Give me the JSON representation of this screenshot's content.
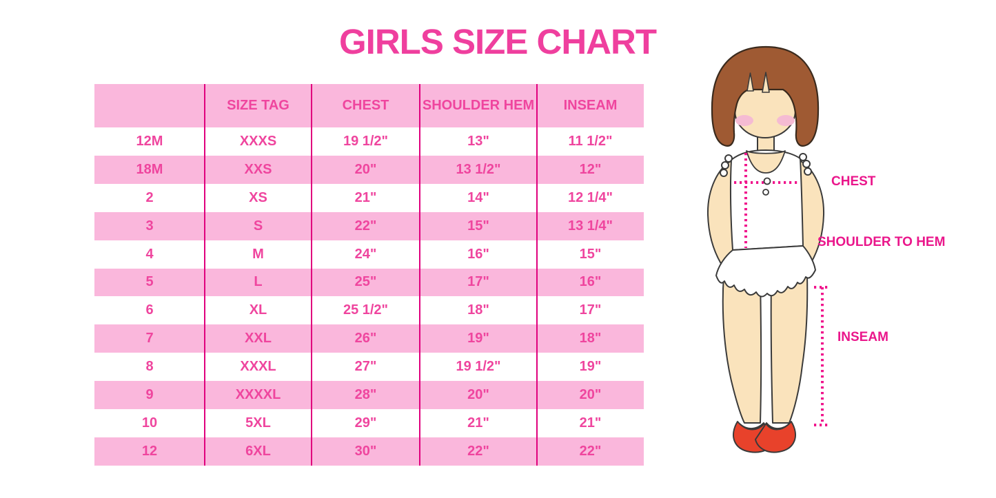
{
  "title": "GIRLS SIZE CHART",
  "chart_data": {
    "type": "table",
    "title": "GIRLS SIZE CHART",
    "columns": [
      "",
      "SIZE TAG",
      "CHEST",
      "SHOULDER HEM",
      "INSEAM"
    ],
    "rows": [
      [
        "12M",
        "XXXS",
        "19 1/2\"",
        "13\"",
        "11 1/2\""
      ],
      [
        "18M",
        "XXS",
        "20\"",
        "13 1/2\"",
        "12\""
      ],
      [
        "2",
        "XS",
        "21\"",
        "14\"",
        "12 1/4\""
      ],
      [
        "3",
        "S",
        "22\"",
        "15\"",
        "13 1/4\""
      ],
      [
        "4",
        "M",
        "24\"",
        "16\"",
        "15\""
      ],
      [
        "5",
        "L",
        "25\"",
        "17\"",
        "16\""
      ],
      [
        "6",
        "XL",
        "25 1/2\"",
        "18\"",
        "17\""
      ],
      [
        "7",
        "XXL",
        "26\"",
        "19\"",
        "18\""
      ],
      [
        "8",
        "XXXL",
        "27\"",
        "19 1/2\"",
        "19\""
      ],
      [
        "9",
        "XXXXL",
        "28\"",
        "20\"",
        "20\""
      ],
      [
        "10",
        "5XL",
        "29\"",
        "21\"",
        "21\""
      ],
      [
        "12",
        "6XL",
        "30\"",
        "22\"",
        "22\""
      ]
    ],
    "row_striping": "first data row white, alternating light pink",
    "layout_hints": {
      "header_background": "light pink",
      "column_dividers": "magenta vertical lines"
    }
  },
  "diagram": {
    "chest_label": "CHEST",
    "shoulder_label": "SHOULDER TO HEM",
    "inseam_label": "INSEAM"
  },
  "colors": {
    "title_pink": "#EF3F9E",
    "table_text": "#EF459E",
    "row_pink": "#FAB7DC",
    "divider": "#E0007D",
    "label": "#EA168B",
    "dotted_line": "#F0148C",
    "hair": "#9F5A33",
    "skin": "#FAE3BC",
    "blush": "#F5BBD3",
    "shoe": "#E8422B",
    "outline": "#3A3A3A"
  }
}
